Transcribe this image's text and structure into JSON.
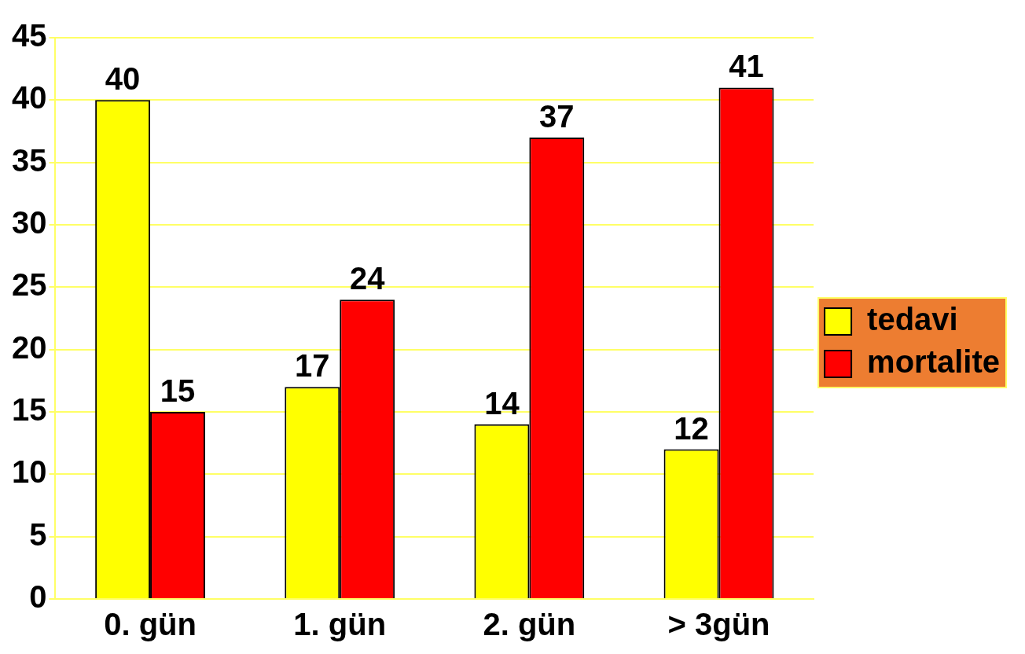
{
  "chart_data": {
    "type": "bar",
    "categories": [
      "0. gün",
      "1. gün",
      "2. gün",
      "> 3gün"
    ],
    "series": [
      {
        "name": "tedavi",
        "color": "#ffff00",
        "values": [
          40,
          17,
          14,
          12
        ]
      },
      {
        "name": "mortalite",
        "color": "#ff0000",
        "values": [
          15,
          24,
          37,
          41
        ]
      }
    ],
    "ylim": [
      0,
      45
    ],
    "yticks": [
      0,
      5,
      10,
      15,
      20,
      25,
      30,
      35,
      40,
      45
    ],
    "grid": "y",
    "legend": "right",
    "data_labels": true
  }
}
